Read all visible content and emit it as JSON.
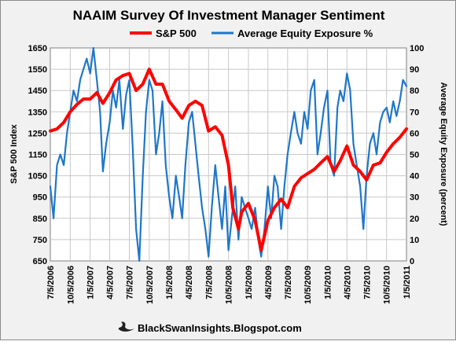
{
  "chart_data": {
    "type": "line",
    "title": "NAAIM Survey Of Investment Manager Sentiment",
    "xlabel": "",
    "ylabel_left": "S&P 500 Index",
    "ylabel_right": "Average Equity Exposure (percent)",
    "ylim_left": [
      650,
      1650
    ],
    "ylim_right": [
      0,
      100
    ],
    "y_ticks_left": [
      650,
      750,
      850,
      950,
      1050,
      1150,
      1250,
      1350,
      1450,
      1550,
      1650
    ],
    "y_ticks_right": [
      0,
      10,
      20,
      30,
      40,
      50,
      60,
      70,
      80,
      90,
      100
    ],
    "x_ticks": [
      "7/5/2006",
      "10/5/2006",
      "1/5/2007",
      "4/5/2007",
      "7/5/2007",
      "10/5/2007",
      "1/5/2008",
      "4/5/2008",
      "7/5/2008",
      "10/5/2008",
      "1/5/2009",
      "4/5/2009",
      "7/5/2009",
      "10/5/2009",
      "1/5/2010",
      "4/5/2010",
      "7/5/2010",
      "10/5/2010",
      "1/5/2011"
    ],
    "grid": true,
    "legend_position": "top",
    "series": [
      {
        "name": "S&P 500",
        "axis": "left",
        "color": "#ff0000",
        "points": [
          [
            "2006-07-05",
            1260
          ],
          [
            "2006-08-05",
            1270
          ],
          [
            "2006-09-05",
            1300
          ],
          [
            "2006-10-05",
            1350
          ],
          [
            "2006-11-05",
            1385
          ],
          [
            "2006-12-05",
            1410
          ],
          [
            "2007-01-05",
            1410
          ],
          [
            "2007-02-05",
            1440
          ],
          [
            "2007-03-05",
            1390
          ],
          [
            "2007-04-05",
            1440
          ],
          [
            "2007-05-05",
            1500
          ],
          [
            "2007-06-05",
            1520
          ],
          [
            "2007-07-05",
            1530
          ],
          [
            "2007-08-05",
            1450
          ],
          [
            "2007-09-05",
            1480
          ],
          [
            "2007-10-05",
            1550
          ],
          [
            "2007-11-05",
            1480
          ],
          [
            "2007-12-05",
            1480
          ],
          [
            "2008-01-05",
            1400
          ],
          [
            "2008-02-05",
            1360
          ],
          [
            "2008-03-05",
            1320
          ],
          [
            "2008-04-05",
            1380
          ],
          [
            "2008-05-05",
            1400
          ],
          [
            "2008-06-05",
            1380
          ],
          [
            "2008-07-05",
            1260
          ],
          [
            "2008-08-05",
            1280
          ],
          [
            "2008-09-05",
            1240
          ],
          [
            "2008-10-05",
            1100
          ],
          [
            "2008-10-25",
            900
          ],
          [
            "2008-11-20",
            800
          ],
          [
            "2008-12-05",
            880
          ],
          [
            "2009-01-05",
            920
          ],
          [
            "2009-02-05",
            840
          ],
          [
            "2009-03-05",
            700
          ],
          [
            "2009-04-05",
            840
          ],
          [
            "2009-05-05",
            900
          ],
          [
            "2009-06-05",
            940
          ],
          [
            "2009-07-05",
            900
          ],
          [
            "2009-08-05",
            1000
          ],
          [
            "2009-09-05",
            1040
          ],
          [
            "2009-10-05",
            1060
          ],
          [
            "2009-11-05",
            1080
          ],
          [
            "2009-12-05",
            1110
          ],
          [
            "2010-01-05",
            1140
          ],
          [
            "2010-02-05",
            1070
          ],
          [
            "2010-03-05",
            1120
          ],
          [
            "2010-04-05",
            1190
          ],
          [
            "2010-05-05",
            1100
          ],
          [
            "2010-06-05",
            1070
          ],
          [
            "2010-07-05",
            1030
          ],
          [
            "2010-08-05",
            1100
          ],
          [
            "2010-09-05",
            1110
          ],
          [
            "2010-10-05",
            1160
          ],
          [
            "2010-11-05",
            1200
          ],
          [
            "2010-12-05",
            1230
          ],
          [
            "2011-01-05",
            1270
          ]
        ]
      },
      {
        "name": "Average Equity Exposure %",
        "axis": "right",
        "color": "#1f77c8",
        "points": [
          [
            "2006-07-05",
            35
          ],
          [
            "2006-07-20",
            20
          ],
          [
            "2006-08-05",
            45
          ],
          [
            "2006-08-20",
            50
          ],
          [
            "2006-09-05",
            45
          ],
          [
            "2006-09-20",
            60
          ],
          [
            "2006-10-05",
            70
          ],
          [
            "2006-10-20",
            80
          ],
          [
            "2006-11-05",
            75
          ],
          [
            "2006-11-20",
            85
          ],
          [
            "2006-12-05",
            90
          ],
          [
            "2006-12-20",
            95
          ],
          [
            "2007-01-05",
            88
          ],
          [
            "2007-01-20",
            100
          ],
          [
            "2007-02-05",
            85
          ],
          [
            "2007-02-20",
            70
          ],
          [
            "2007-03-05",
            42
          ],
          [
            "2007-03-20",
            55
          ],
          [
            "2007-04-05",
            65
          ],
          [
            "2007-04-20",
            80
          ],
          [
            "2007-05-05",
            72
          ],
          [
            "2007-05-20",
            85
          ],
          [
            "2007-06-05",
            62
          ],
          [
            "2007-06-20",
            78
          ],
          [
            "2007-07-05",
            85
          ],
          [
            "2007-07-20",
            55
          ],
          [
            "2007-08-05",
            15
          ],
          [
            "2007-08-20",
            0
          ],
          [
            "2007-09-05",
            40
          ],
          [
            "2007-09-20",
            70
          ],
          [
            "2007-10-05",
            85
          ],
          [
            "2007-10-20",
            80
          ],
          [
            "2007-11-05",
            50
          ],
          [
            "2007-11-20",
            60
          ],
          [
            "2007-12-05",
            75
          ],
          [
            "2007-12-20",
            45
          ],
          [
            "2008-01-05",
            30
          ],
          [
            "2008-01-20",
            20
          ],
          [
            "2008-02-05",
            40
          ],
          [
            "2008-02-20",
            30
          ],
          [
            "2008-03-05",
            20
          ],
          [
            "2008-03-20",
            45
          ],
          [
            "2008-04-05",
            65
          ],
          [
            "2008-04-20",
            70
          ],
          [
            "2008-05-05",
            55
          ],
          [
            "2008-05-20",
            40
          ],
          [
            "2008-06-05",
            25
          ],
          [
            "2008-06-20",
            15
          ],
          [
            "2008-07-05",
            2
          ],
          [
            "2008-07-20",
            25
          ],
          [
            "2008-08-05",
            45
          ],
          [
            "2008-08-20",
            30
          ],
          [
            "2008-09-05",
            15
          ],
          [
            "2008-09-20",
            35
          ],
          [
            "2008-10-05",
            5
          ],
          [
            "2008-10-20",
            20
          ],
          [
            "2008-11-05",
            35
          ],
          [
            "2008-11-20",
            10
          ],
          [
            "2008-12-05",
            30
          ],
          [
            "2008-12-20",
            25
          ],
          [
            "2009-01-05",
            20
          ],
          [
            "2009-01-20",
            15
          ],
          [
            "2009-02-05",
            25
          ],
          [
            "2009-02-20",
            10
          ],
          [
            "2009-03-05",
            2
          ],
          [
            "2009-03-20",
            15
          ],
          [
            "2009-04-05",
            35
          ],
          [
            "2009-04-20",
            20
          ],
          [
            "2009-05-05",
            40
          ],
          [
            "2009-05-20",
            35
          ],
          [
            "2009-06-05",
            15
          ],
          [
            "2009-06-20",
            35
          ],
          [
            "2009-07-05",
            50
          ],
          [
            "2009-07-20",
            60
          ],
          [
            "2009-08-05",
            70
          ],
          [
            "2009-08-20",
            60
          ],
          [
            "2009-09-05",
            55
          ],
          [
            "2009-09-20",
            70
          ],
          [
            "2009-10-05",
            62
          ],
          [
            "2009-10-20",
            80
          ],
          [
            "2009-11-05",
            85
          ],
          [
            "2009-11-20",
            50
          ],
          [
            "2009-12-05",
            60
          ],
          [
            "2009-12-20",
            72
          ],
          [
            "2010-01-05",
            80
          ],
          [
            "2010-01-20",
            45
          ],
          [
            "2010-02-05",
            40
          ],
          [
            "2010-02-20",
            72
          ],
          [
            "2010-03-05",
            80
          ],
          [
            "2010-03-20",
            75
          ],
          [
            "2010-04-05",
            88
          ],
          [
            "2010-04-20",
            80
          ],
          [
            "2010-05-05",
            55
          ],
          [
            "2010-05-20",
            45
          ],
          [
            "2010-06-05",
            35
          ],
          [
            "2010-06-20",
            15
          ],
          [
            "2010-07-05",
            40
          ],
          [
            "2010-07-20",
            55
          ],
          [
            "2010-08-05",
            60
          ],
          [
            "2010-08-20",
            50
          ],
          [
            "2010-09-05",
            65
          ],
          [
            "2010-09-20",
            70
          ],
          [
            "2010-10-05",
            72
          ],
          [
            "2010-10-20",
            65
          ],
          [
            "2010-11-05",
            75
          ],
          [
            "2010-11-20",
            68
          ],
          [
            "2010-12-05",
            75
          ],
          [
            "2010-12-20",
            85
          ],
          [
            "2011-01-05",
            82
          ]
        ]
      }
    ]
  },
  "footer": {
    "credit": "BlackSwanInsights.Blogspot.com",
    "logo_icon": "swan-icon"
  },
  "colors": {
    "background": "#f1f1f1",
    "plot_background": "#ffffff",
    "grid": "#c8c8c8",
    "sp500": "#ff0000",
    "exposure": "#1f77c8"
  }
}
